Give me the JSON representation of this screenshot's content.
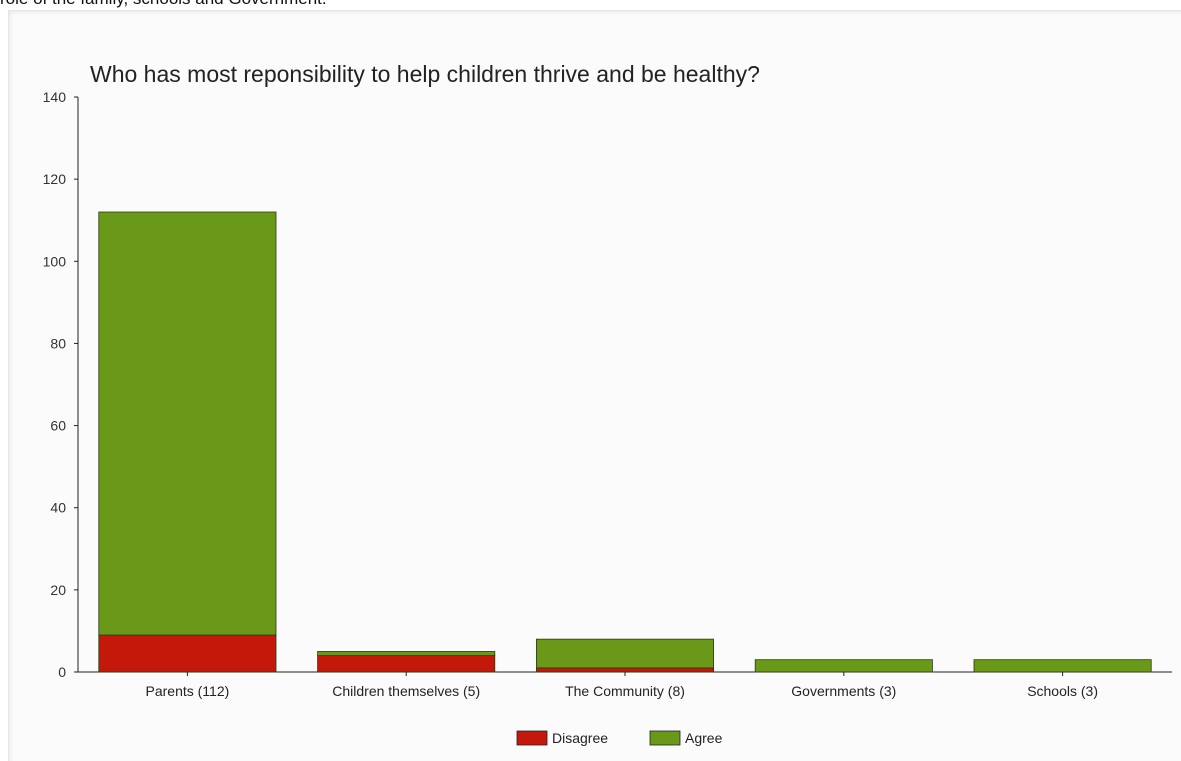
{
  "header_text": "role of the family, schools and Government.",
  "chart_data": {
    "type": "bar",
    "stacked": true,
    "title": "Who has most reponsibility to help children thrive and be healthy?",
    "categories": [
      "Parents (112)",
      "Children themselves (5)",
      "The Community (8)",
      "Governments (3)",
      "Schools (3)"
    ],
    "series": [
      {
        "name": "Disagree",
        "color": "#c4190a",
        "values": [
          9,
          4,
          1,
          0,
          0
        ]
      },
      {
        "name": "Agree",
        "color": "#6a991a",
        "values": [
          103,
          1,
          7,
          3,
          3
        ]
      }
    ],
    "ylim": [
      0,
      140
    ],
    "yticks": [
      0,
      20,
      40,
      60,
      80,
      100,
      120,
      140
    ],
    "xlabel": "",
    "ylabel": "",
    "grid": false,
    "legend": "bottom-center"
  }
}
